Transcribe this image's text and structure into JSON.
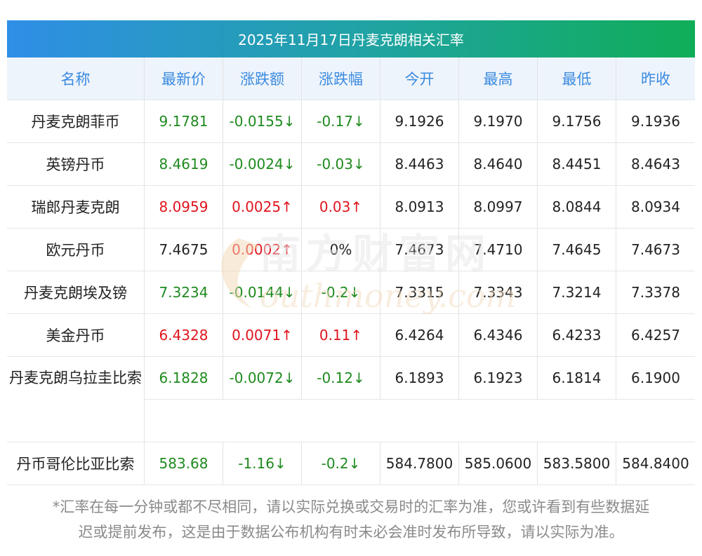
{
  "title": "2025年11月17日丹麦克朗相关汇率",
  "headers": [
    "名称",
    "最新价",
    "涨跌额",
    "涨跌幅",
    "今开",
    "最高",
    "最低",
    "昨收"
  ],
  "rows": [
    {
      "name": "丹麦克朗菲币",
      "latest": "9.1781",
      "change": "-0.0155↓",
      "pct": "-0.17↓",
      "open": "9.1926",
      "high": "9.1970",
      "low": "9.1756",
      "prev": "9.1936",
      "trend": "down"
    },
    {
      "name": "英镑丹币",
      "latest": "8.4619",
      "change": "-0.0024↓",
      "pct": "-0.03↓",
      "open": "8.4463",
      "high": "8.4640",
      "low": "8.4451",
      "prev": "8.4643",
      "trend": "down"
    },
    {
      "name": "瑞郎丹麦克朗",
      "latest": "8.0959",
      "change": "0.0025↑",
      "pct": "0.03↑",
      "open": "8.0913",
      "high": "8.0997",
      "low": "8.0844",
      "prev": "8.0934",
      "trend": "up"
    },
    {
      "name": "欧元丹币",
      "latest": "7.4675",
      "change": "0.0002↑",
      "pct": "0%",
      "open": "7.4673",
      "high": "7.4710",
      "low": "7.4645",
      "prev": "7.4673",
      "trend": "flat"
    },
    {
      "name": "丹麦克朗埃及镑",
      "latest": "7.3234",
      "change": "-0.0144↓",
      "pct": "-0.2↓",
      "open": "7.3315",
      "high": "7.3343",
      "low": "7.3214",
      "prev": "7.3378",
      "trend": "down"
    },
    {
      "name": "美金丹币",
      "latest": "6.4328",
      "change": "0.0071↑",
      "pct": "0.11↑",
      "open": "6.4264",
      "high": "6.4346",
      "low": "6.4233",
      "prev": "6.4257",
      "trend": "up"
    },
    {
      "name": "丹麦克朗乌拉圭比索",
      "latest": "6.1828",
      "change": "-0.0072↓",
      "pct": "-0.12↓",
      "open": "6.1893",
      "high": "6.1923",
      "low": "6.1814",
      "prev": "6.1900",
      "trend": "down"
    },
    {
      "name": "丹币哥伦比亚比索",
      "latest": "583.68",
      "change": "-1.16↓",
      "pct": "-0.2↓",
      "open": "584.7800",
      "high": "585.0600",
      "low": "583.5800",
      "prev": "584.8400",
      "trend": "down"
    }
  ],
  "watermark": {
    "cn": "南方财富网",
    "en": "outhmoney.com"
  },
  "footnote_line1": "*汇率在每一分钟或都不尽相同，请以实际兑换或交易时的汇率为准，您或许看到有些数据延",
  "footnote_line2": "迟或提前发布，这是由于数据公布机构有时未必会准时发布所导致，请以实际为准。",
  "colors": {
    "up": "#e0141e",
    "down": "#1e8a1e",
    "flat": "#222222",
    "header_text": "#3a8ae0"
  }
}
